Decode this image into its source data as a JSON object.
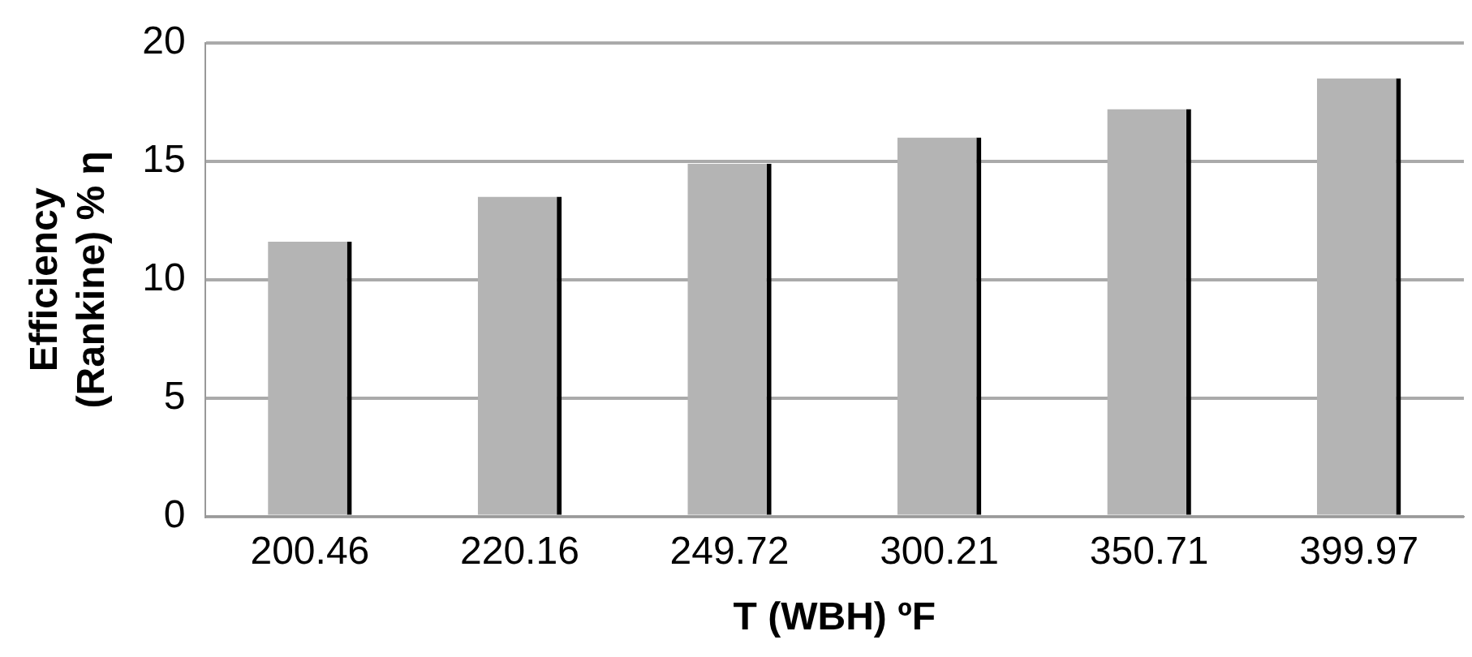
{
  "chart_data": {
    "type": "bar",
    "xlabel": "T (WBH) ºF",
    "ylabel": "Efficiency (Rankine) % η",
    "categories": [
      "200.46",
      "220.16",
      "249.72",
      "300.21",
      "350.71",
      "399.97"
    ],
    "values": [
      11.6,
      13.5,
      14.9,
      16.0,
      17.2,
      18.5
    ],
    "color": "#b4b4b4",
    "ylim": [
      0,
      20
    ],
    "yticks": [
      0,
      5,
      10,
      15,
      20
    ],
    "grid": "y"
  }
}
